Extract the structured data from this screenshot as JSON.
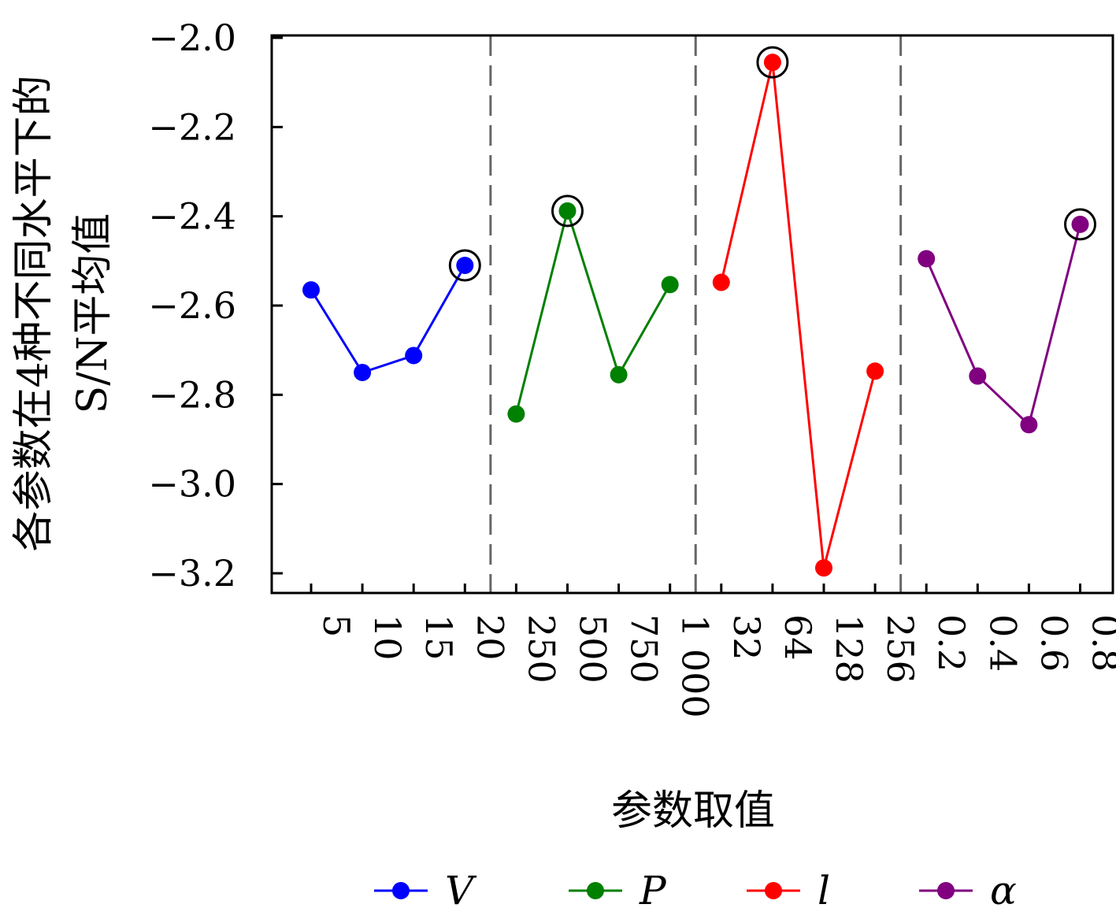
{
  "chart_data": {
    "type": "line",
    "ylabel_line1": "各参数在4种不同水平下的",
    "ylabel_line2": "S/N平均值",
    "xlabel": "参数取值",
    "ylim": [
      -3.25,
      -1.98
    ],
    "yticks": [
      "−2.0",
      "−2.2",
      "−2.4",
      "−2.6",
      "−2.8",
      "−3.0",
      "−3.2"
    ],
    "ytick_values": [
      -2.0,
      -2.2,
      -2.4,
      -2.6,
      -2.8,
      -3.0,
      -3.2
    ],
    "grid": false,
    "legend_position": "bottom",
    "series": [
      {
        "name": "V",
        "color": "#0000ff",
        "categories": [
          "5",
          "10",
          "15",
          "20"
        ],
        "values": [
          -2.565,
          -2.75,
          -2.712,
          -2.51
        ],
        "best_index": 3
      },
      {
        "name": "P",
        "color": "#008000",
        "categories": [
          "250",
          "500",
          "750",
          "1 000"
        ],
        "values": [
          -2.843,
          -2.388,
          -2.755,
          -2.553
        ],
        "best_index": 1
      },
      {
        "name": "l",
        "color": "#ff0000",
        "categories": [
          "32",
          "64",
          "128",
          "256"
        ],
        "values": [
          -2.548,
          -2.055,
          -3.188,
          -2.747
        ],
        "best_index": 1
      },
      {
        "name": "α",
        "color": "#800080",
        "categories": [
          "0.2",
          "0.4",
          "0.6",
          "0.8"
        ],
        "values": [
          -2.495,
          -2.758,
          -2.867,
          -2.418
        ],
        "best_index": 3
      }
    ]
  }
}
